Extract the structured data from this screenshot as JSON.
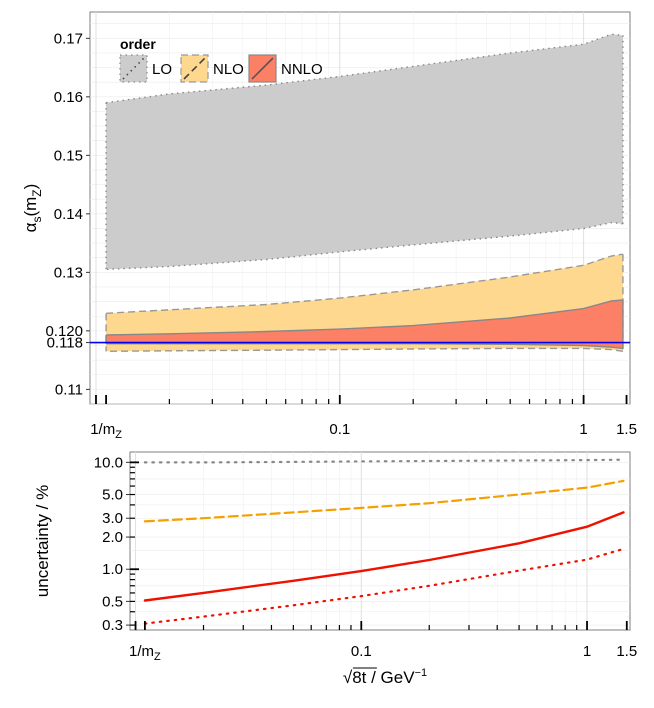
{
  "chart_data": [
    {
      "type": "area",
      "xscale": "log",
      "xlim": [
        0.00945,
        1.55
      ],
      "ylim": [
        0.1075,
        0.1745
      ],
      "x_ticks": [
        {
          "value": 0.011,
          "label": "1/m",
          "sub": "Z"
        },
        {
          "value": 0.1,
          "label": "0.1"
        },
        {
          "value": 1.0,
          "label": "1"
        },
        {
          "value": 1.5,
          "label": "1.5"
        }
      ],
      "y_ticks": [
        0.11,
        0.118,
        0.12,
        0.13,
        0.14,
        0.15,
        0.16,
        0.17
      ],
      "y_tick_labels": [
        "0.11",
        "0.118",
        "0.120",
        "0.13",
        "0.14",
        "0.15",
        "0.16",
        "0.17"
      ],
      "ylabel": {
        "main": "α",
        "sub1": "s",
        "paren_open": "(m",
        "sub2": "Z",
        "paren_close": ")"
      },
      "legend": {
        "title": "order",
        "placement": "top-left",
        "entries": [
          "LO",
          "NLO",
          "NNLO"
        ]
      },
      "reference_line": {
        "y": 0.118,
        "color": "#0000ee"
      },
      "grid": true,
      "x": [
        0.011,
        0.02,
        0.05,
        0.1,
        0.2,
        0.5,
        1.0,
        1.3,
        1.45
      ],
      "series": [
        {
          "name": "LO",
          "fill": "#cccccc",
          "stroke": "#888888",
          "dash": "dotted",
          "upper": [
            0.159,
            0.1605,
            0.162,
            0.1635,
            0.1652,
            0.1675,
            0.169,
            0.1707,
            0.1705
          ],
          "lower": [
            0.1305,
            0.131,
            0.1322,
            0.1335,
            0.1347,
            0.1362,
            0.1375,
            0.1385,
            0.1383
          ]
        },
        {
          "name": "NLO",
          "fill": "#fed88f",
          "stroke": "#999999",
          "dash": "dashed",
          "upper": [
            0.123,
            0.1236,
            0.1245,
            0.1256,
            0.127,
            0.1292,
            0.1312,
            0.1328,
            0.1331
          ],
          "lower": [
            0.1165,
            0.1166,
            0.1167,
            0.1168,
            0.1169,
            0.117,
            0.117,
            0.1168,
            0.1165
          ]
        },
        {
          "name": "NNLO",
          "fill": "#fb8066",
          "stroke": "#888888",
          "dash": "solid",
          "upper": [
            0.1193,
            0.1195,
            0.1199,
            0.1203,
            0.1209,
            0.1222,
            0.1238,
            0.1251,
            0.1253
          ],
          "lower": [
            0.1178,
            0.1178,
            0.1178,
            0.1178,
            0.1178,
            0.1177,
            0.1175,
            0.1172,
            0.117
          ]
        }
      ]
    },
    {
      "type": "line",
      "xscale": "log",
      "yscale": "log",
      "xlim": [
        0.00945,
        1.55
      ],
      "ylim": [
        0.27,
        12.5
      ],
      "xlabel": {
        "root": "√8t",
        "unit": " / GeV",
        "sup": "−1"
      },
      "ylabel": "uncertainty / %",
      "x_ticks": [
        {
          "value": 0.011,
          "label": "1/m",
          "sub": "Z"
        },
        {
          "value": 0.1,
          "label": "0.1"
        },
        {
          "value": 1.0,
          "label": "1"
        },
        {
          "value": 1.5,
          "label": "1.5"
        }
      ],
      "y_ticks": [
        0.3,
        0.5,
        1.0,
        2.0,
        3.0,
        5.0,
        10.0
      ],
      "y_tick_labels": [
        "0.3",
        "0.5",
        "1.0",
        "2.0",
        "3.0",
        "5.0",
        "10.0"
      ],
      "grid": true,
      "x": [
        0.011,
        0.02,
        0.05,
        0.1,
        0.2,
        0.5,
        1.0,
        1.45
      ],
      "series": [
        {
          "name": "LO",
          "color": "#888888",
          "dash": "dotted",
          "values": [
            10.0,
            10.0,
            10.1,
            10.2,
            10.3,
            10.4,
            10.5,
            10.6
          ]
        },
        {
          "name": "NLO",
          "color": "#f5a000",
          "dash": "dashed",
          "values": [
            2.8,
            3.0,
            3.4,
            3.75,
            4.15,
            5.0,
            5.8,
            6.7
          ]
        },
        {
          "name": "NNLO",
          "color": "#ee1100",
          "dash": "solid",
          "values": [
            0.51,
            0.6,
            0.78,
            0.96,
            1.22,
            1.75,
            2.5,
            3.4
          ]
        },
        {
          "name": "NNLO",
          "color": "#ee1100",
          "dash": "dotted",
          "values": [
            0.31,
            0.36,
            0.46,
            0.56,
            0.7,
            0.97,
            1.23,
            1.55
          ]
        }
      ]
    }
  ]
}
